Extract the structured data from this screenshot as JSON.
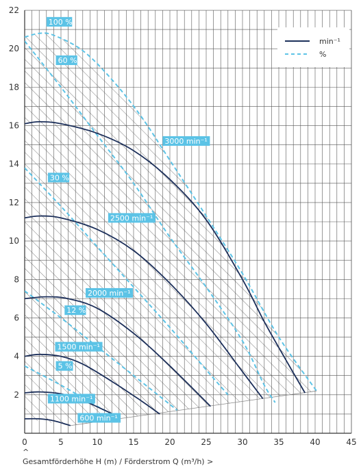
{
  "chart_data": {
    "type": "line",
    "xlabel": "Gesamtförderhöhe H (m) / Förderstrom Q (m³/h) >",
    "caret": "^",
    "xlim": [
      0,
      45
    ],
    "ylim": [
      0,
      22
    ],
    "xticks": [
      0,
      5,
      10,
      15,
      20,
      25,
      30,
      35,
      40,
      45
    ],
    "yticks": [
      2,
      4,
      6,
      8,
      10,
      12,
      14,
      16,
      18,
      20,
      22
    ],
    "grid": true,
    "legend": {
      "placement": "top-right",
      "entries": [
        {
          "label": "min⁻¹",
          "style": "solid"
        },
        {
          "label": "%",
          "style": "dashed"
        }
      ]
    },
    "colors": {
      "speed_curve": "#1c2f5a",
      "efficiency_curve": "#5cc3e6",
      "label_box": "#5cc3e6",
      "grid": "#555555",
      "hatch": "#444444"
    },
    "speed_series": [
      {
        "label": "3000 min⁻¹",
        "points": [
          [
            0,
            16.1
          ],
          [
            2,
            16.2
          ],
          [
            5,
            16.1
          ],
          [
            10,
            15.6
          ],
          [
            15,
            14.7
          ],
          [
            20,
            13.2
          ],
          [
            25,
            11.1
          ],
          [
            30,
            8.0
          ],
          [
            33,
            5.8
          ],
          [
            36,
            3.8
          ],
          [
            38.6,
            2.1
          ]
        ]
      },
      {
        "label": "2500 min⁻¹",
        "points": [
          [
            0,
            11.2
          ],
          [
            2,
            11.3
          ],
          [
            5,
            11.2
          ],
          [
            10,
            10.6
          ],
          [
            15,
            9.5
          ],
          [
            20,
            7.8
          ],
          [
            25,
            5.7
          ],
          [
            30,
            3.2
          ],
          [
            32.8,
            1.8
          ]
        ]
      },
      {
        "label": "2000 min⁻¹",
        "points": [
          [
            0,
            7.0
          ],
          [
            3,
            7.1
          ],
          [
            6,
            7.0
          ],
          [
            10,
            6.5
          ],
          [
            15,
            5.2
          ],
          [
            20,
            3.5
          ],
          [
            25.6,
            1.4
          ]
        ]
      },
      {
        "label": "1500 min⁻¹",
        "points": [
          [
            0,
            4.0
          ],
          [
            2,
            4.1
          ],
          [
            5,
            4.0
          ],
          [
            8,
            3.6
          ],
          [
            12,
            2.7
          ],
          [
            16,
            1.7
          ],
          [
            18.6,
            1.0
          ]
        ]
      },
      {
        "label": "1100 min⁻¹",
        "points": [
          [
            0,
            2.1
          ],
          [
            2,
            2.15
          ],
          [
            5,
            2.05
          ],
          [
            8,
            1.7
          ],
          [
            11,
            1.2
          ],
          [
            13.2,
            0.8
          ]
        ]
      },
      {
        "label": "600 min⁻¹",
        "points": [
          [
            0,
            0.75
          ],
          [
            2,
            0.75
          ],
          [
            4,
            0.65
          ],
          [
            6.3,
            0.4
          ]
        ]
      }
    ],
    "efficiency_series": [
      {
        "label": "100 %",
        "points": [
          [
            0,
            20.6
          ],
          [
            2,
            20.8
          ],
          [
            4,
            20.7
          ],
          [
            8,
            19.9
          ],
          [
            12,
            18.4
          ],
          [
            16,
            16.5
          ],
          [
            20,
            14.2
          ],
          [
            25,
            11.3
          ],
          [
            30,
            8.3
          ],
          [
            35,
            5.0
          ],
          [
            40.2,
            2.2
          ]
        ]
      },
      {
        "label": "60 %",
        "points": [
          [
            0,
            20.4
          ],
          [
            5,
            18.0
          ],
          [
            10,
            15.5
          ],
          [
            15,
            13.0
          ],
          [
            20,
            10.2
          ],
          [
            25,
            7.6
          ],
          [
            30,
            4.8
          ],
          [
            33,
            2.5
          ],
          [
            34.5,
            1.6
          ]
        ]
      },
      {
        "label": "30 %",
        "points": [
          [
            0,
            13.8
          ],
          [
            5,
            11.8
          ],
          [
            10,
            9.7
          ],
          [
            15,
            7.6
          ],
          [
            20,
            5.5
          ],
          [
            25,
            3.3
          ],
          [
            28,
            2.0
          ]
        ]
      },
      {
        "label": "12 %",
        "points": [
          [
            0,
            7.4
          ],
          [
            5,
            6.0
          ],
          [
            10,
            4.5
          ],
          [
            15,
            3.0
          ],
          [
            20,
            1.5
          ],
          [
            21,
            1.2
          ]
        ]
      },
      {
        "label": "5 %",
        "points": [
          [
            0,
            3.5
          ],
          [
            5,
            2.5
          ],
          [
            10,
            1.4
          ],
          [
            12,
            1.0
          ]
        ]
      }
    ],
    "operating_field": [
      [
        0,
        20.6
      ],
      [
        2,
        20.8
      ],
      [
        4,
        20.7
      ],
      [
        8,
        19.9
      ],
      [
        12,
        18.4
      ],
      [
        16,
        16.5
      ],
      [
        20,
        14.2
      ],
      [
        25,
        11.3
      ],
      [
        30,
        8.3
      ],
      [
        35,
        5.0
      ],
      [
        40.2,
        2.2
      ],
      [
        6.3,
        0.4
      ],
      [
        0,
        0.75
      ]
    ],
    "box_labels": [
      {
        "text": "100 %",
        "x": 3.0,
        "y": 21.4
      },
      {
        "text": "60 %",
        "x": 4.3,
        "y": 19.4
      },
      {
        "text": "3000 min⁻¹",
        "x": 19.0,
        "y": 15.2
      },
      {
        "text": "30 %",
        "x": 3.2,
        "y": 13.3
      },
      {
        "text": "2500 min⁻¹",
        "x": 11.5,
        "y": 11.2
      },
      {
        "text": "2000 min⁻¹",
        "x": 8.4,
        "y": 7.3
      },
      {
        "text": "12 %",
        "x": 5.5,
        "y": 6.4
      },
      {
        "text": "1500 min⁻¹",
        "x": 4.2,
        "y": 4.5
      },
      {
        "text": "5 %",
        "x": 4.3,
        "y": 3.5
      },
      {
        "text": "1100 min⁻¹",
        "x": 3.2,
        "y": 1.8
      },
      {
        "text": "600 min⁻¹",
        "x": 7.3,
        "y": 0.8
      }
    ]
  }
}
